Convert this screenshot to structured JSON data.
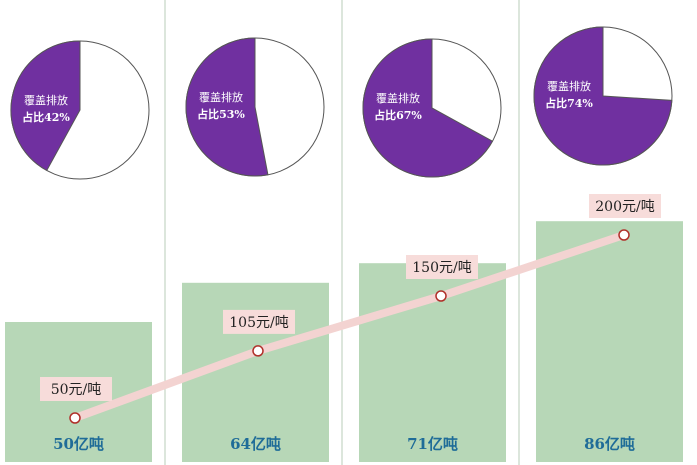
{
  "chart_data": [
    {
      "type": "bar",
      "values": [
        50,
        64,
        71,
        86
      ],
      "value_labels": [
        "50亿吨",
        "64亿吨",
        "71亿吨",
        "86亿吨"
      ],
      "color": "#b7d7b7"
    },
    {
      "type": "line",
      "values": [
        50,
        105,
        150,
        200
      ],
      "value_labels": [
        "50元/吨",
        "105元/吨",
        "150元/吨",
        "200元/吨"
      ],
      "color": "#f3d3d1"
    },
    {
      "type": "pie",
      "label": "覆盖排放",
      "values": [
        42,
        53,
        67,
        74
      ],
      "value_labels": [
        "占比42%",
        "占比53%",
        "占比67%",
        "占比74%"
      ],
      "color": "#7030a0"
    }
  ]
}
